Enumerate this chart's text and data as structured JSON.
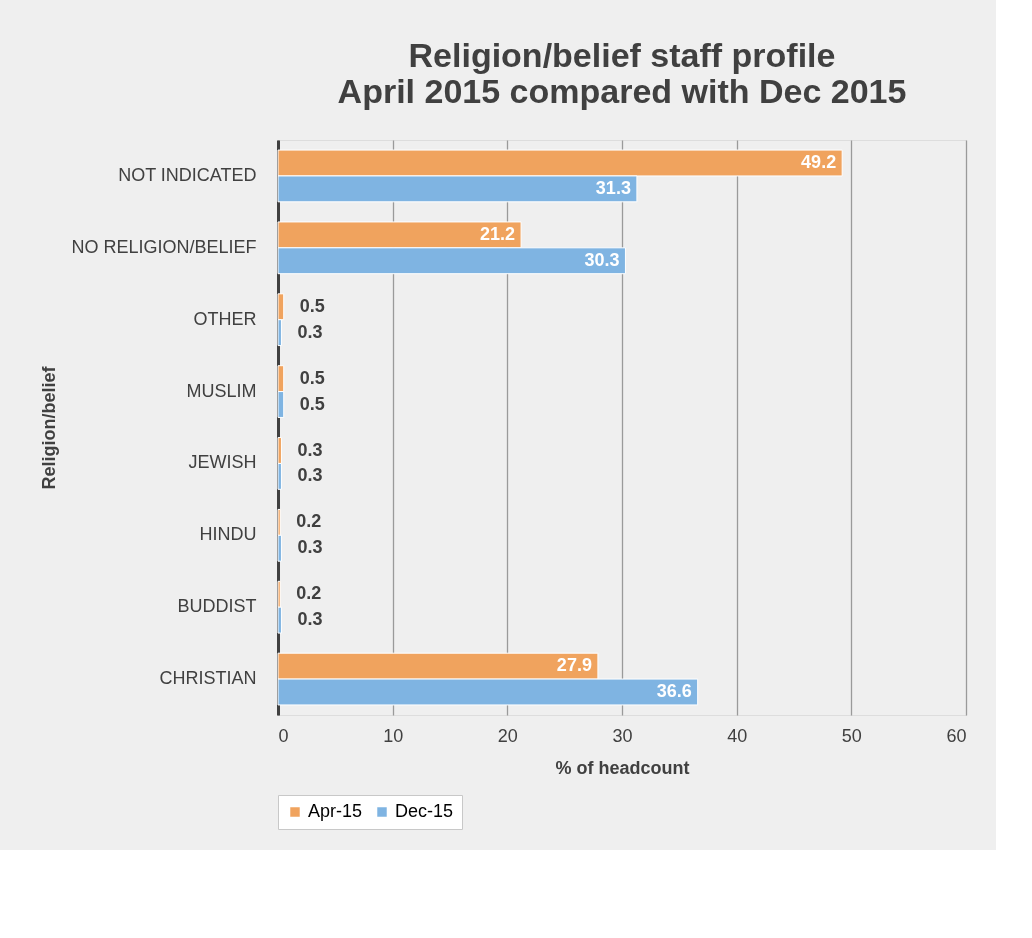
{
  "chart_data": {
    "type": "bar",
    "orientation": "horizontal",
    "title": "Religion/belief staff profile\nApril 2015 compared with Dec 2015",
    "xlabel": "% of headcount",
    "ylabel": "Religion/belief",
    "categories": [
      "NOT INDICATED",
      "NO RELIGION/BELIEF",
      "OTHER",
      "MUSLIM",
      "JEWISH",
      "HINDU",
      "BUDDIST",
      "CHRISTIAN"
    ],
    "series": [
      {
        "name": "Apr-15",
        "color": "#f0a35e",
        "values": [
          49.2,
          21.2,
          0.5,
          0.5,
          0.3,
          0.2,
          0.2,
          27.9
        ]
      },
      {
        "name": "Dec-15",
        "color": "#7fb4e2",
        "values": [
          31.3,
          30.3,
          0.3,
          0.5,
          0.3,
          0.3,
          0.3,
          36.6
        ]
      }
    ],
    "xlim": [
      0,
      60
    ],
    "xticks": [
      0,
      10,
      20,
      30,
      40,
      50,
      60
    ],
    "grid": "x",
    "legend": "bottom",
    "data_labels": true
  }
}
